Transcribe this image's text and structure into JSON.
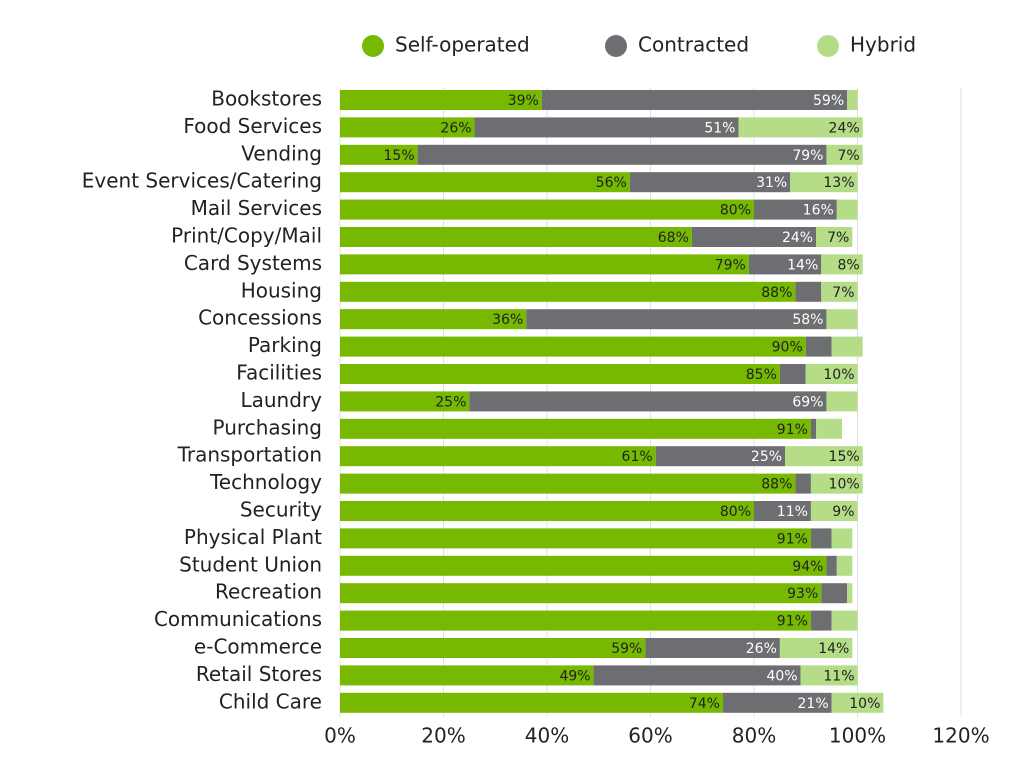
{
  "chart_data": {
    "type": "stacked-bar-horizontal",
    "categories": [
      "Bookstores",
      "Food Services",
      "Vending",
      "Event Services/Catering",
      "Mail Services",
      "Print/Copy/Mail",
      "Card Systems",
      "Housing",
      "Concessions",
      "Parking",
      "Facilities",
      "Laundry",
      "Purchasing",
      "Transportation",
      "Technology",
      "Security",
      "Physical Plant",
      "Student Union",
      "Recreation",
      "Communications",
      "e-Commerce",
      "Retail Stores",
      "Child Care"
    ],
    "series": [
      {
        "name": "Self-operated",
        "color": "#76b900",
        "values": [
          39,
          26,
          15,
          56,
          80,
          68,
          79,
          88,
          36,
          90,
          85,
          25,
          91,
          61,
          88,
          80,
          91,
          94,
          93,
          91,
          59,
          49,
          74
        ],
        "value_labels": [
          "39%",
          "26%",
          "15%",
          "56%",
          "80%",
          "68%",
          "79%",
          "88%",
          "36%",
          "90%",
          "85%",
          "25%",
          "91%",
          "61%",
          "88%",
          "80%",
          "91%",
          "94%",
          "93%",
          "91%",
          "59%",
          "49%",
          "74%"
        ]
      },
      {
        "name": "Contracted",
        "color": "#6d6e71",
        "values": [
          59,
          51,
          79,
          31,
          16,
          24,
          14,
          5,
          58,
          5,
          5,
          69,
          1,
          25,
          3,
          11,
          4,
          2,
          5,
          4,
          26,
          40,
          21
        ],
        "value_labels": [
          "59%",
          "51%",
          "79%",
          "31%",
          "16%",
          "24%",
          "14%",
          null,
          "58%",
          null,
          null,
          "69%",
          null,
          "25%",
          null,
          "11%",
          null,
          null,
          null,
          null,
          "26%",
          "40%",
          "21%"
        ]
      },
      {
        "name": "Hybrid",
        "color": "#b5dc86",
        "values": [
          2,
          24,
          7,
          13,
          4,
          7,
          8,
          7,
          6,
          6,
          10,
          6,
          5,
          15,
          10,
          9,
          4,
          3,
          1,
          5,
          14,
          11,
          10
        ],
        "value_labels": [
          null,
          "24%",
          "7%",
          "13%",
          null,
          "7%",
          "8%",
          "7%",
          null,
          null,
          "10%",
          null,
          null,
          "15%",
          "10%",
          "9%",
          null,
          null,
          null,
          null,
          "14%",
          "11%",
          "10%"
        ]
      }
    ],
    "xlim": [
      0,
      120
    ],
    "xticks": [
      {
        "value": 0,
        "label": "0%"
      },
      {
        "value": 20,
        "label": "20%"
      },
      {
        "value": 40,
        "label": "40%"
      },
      {
        "value": 60,
        "label": "60%"
      },
      {
        "value": 80,
        "label": "80%"
      },
      {
        "value": 100,
        "label": "100%"
      },
      {
        "value": 120,
        "label": "120%"
      }
    ],
    "grid": true,
    "legend": "top"
  }
}
